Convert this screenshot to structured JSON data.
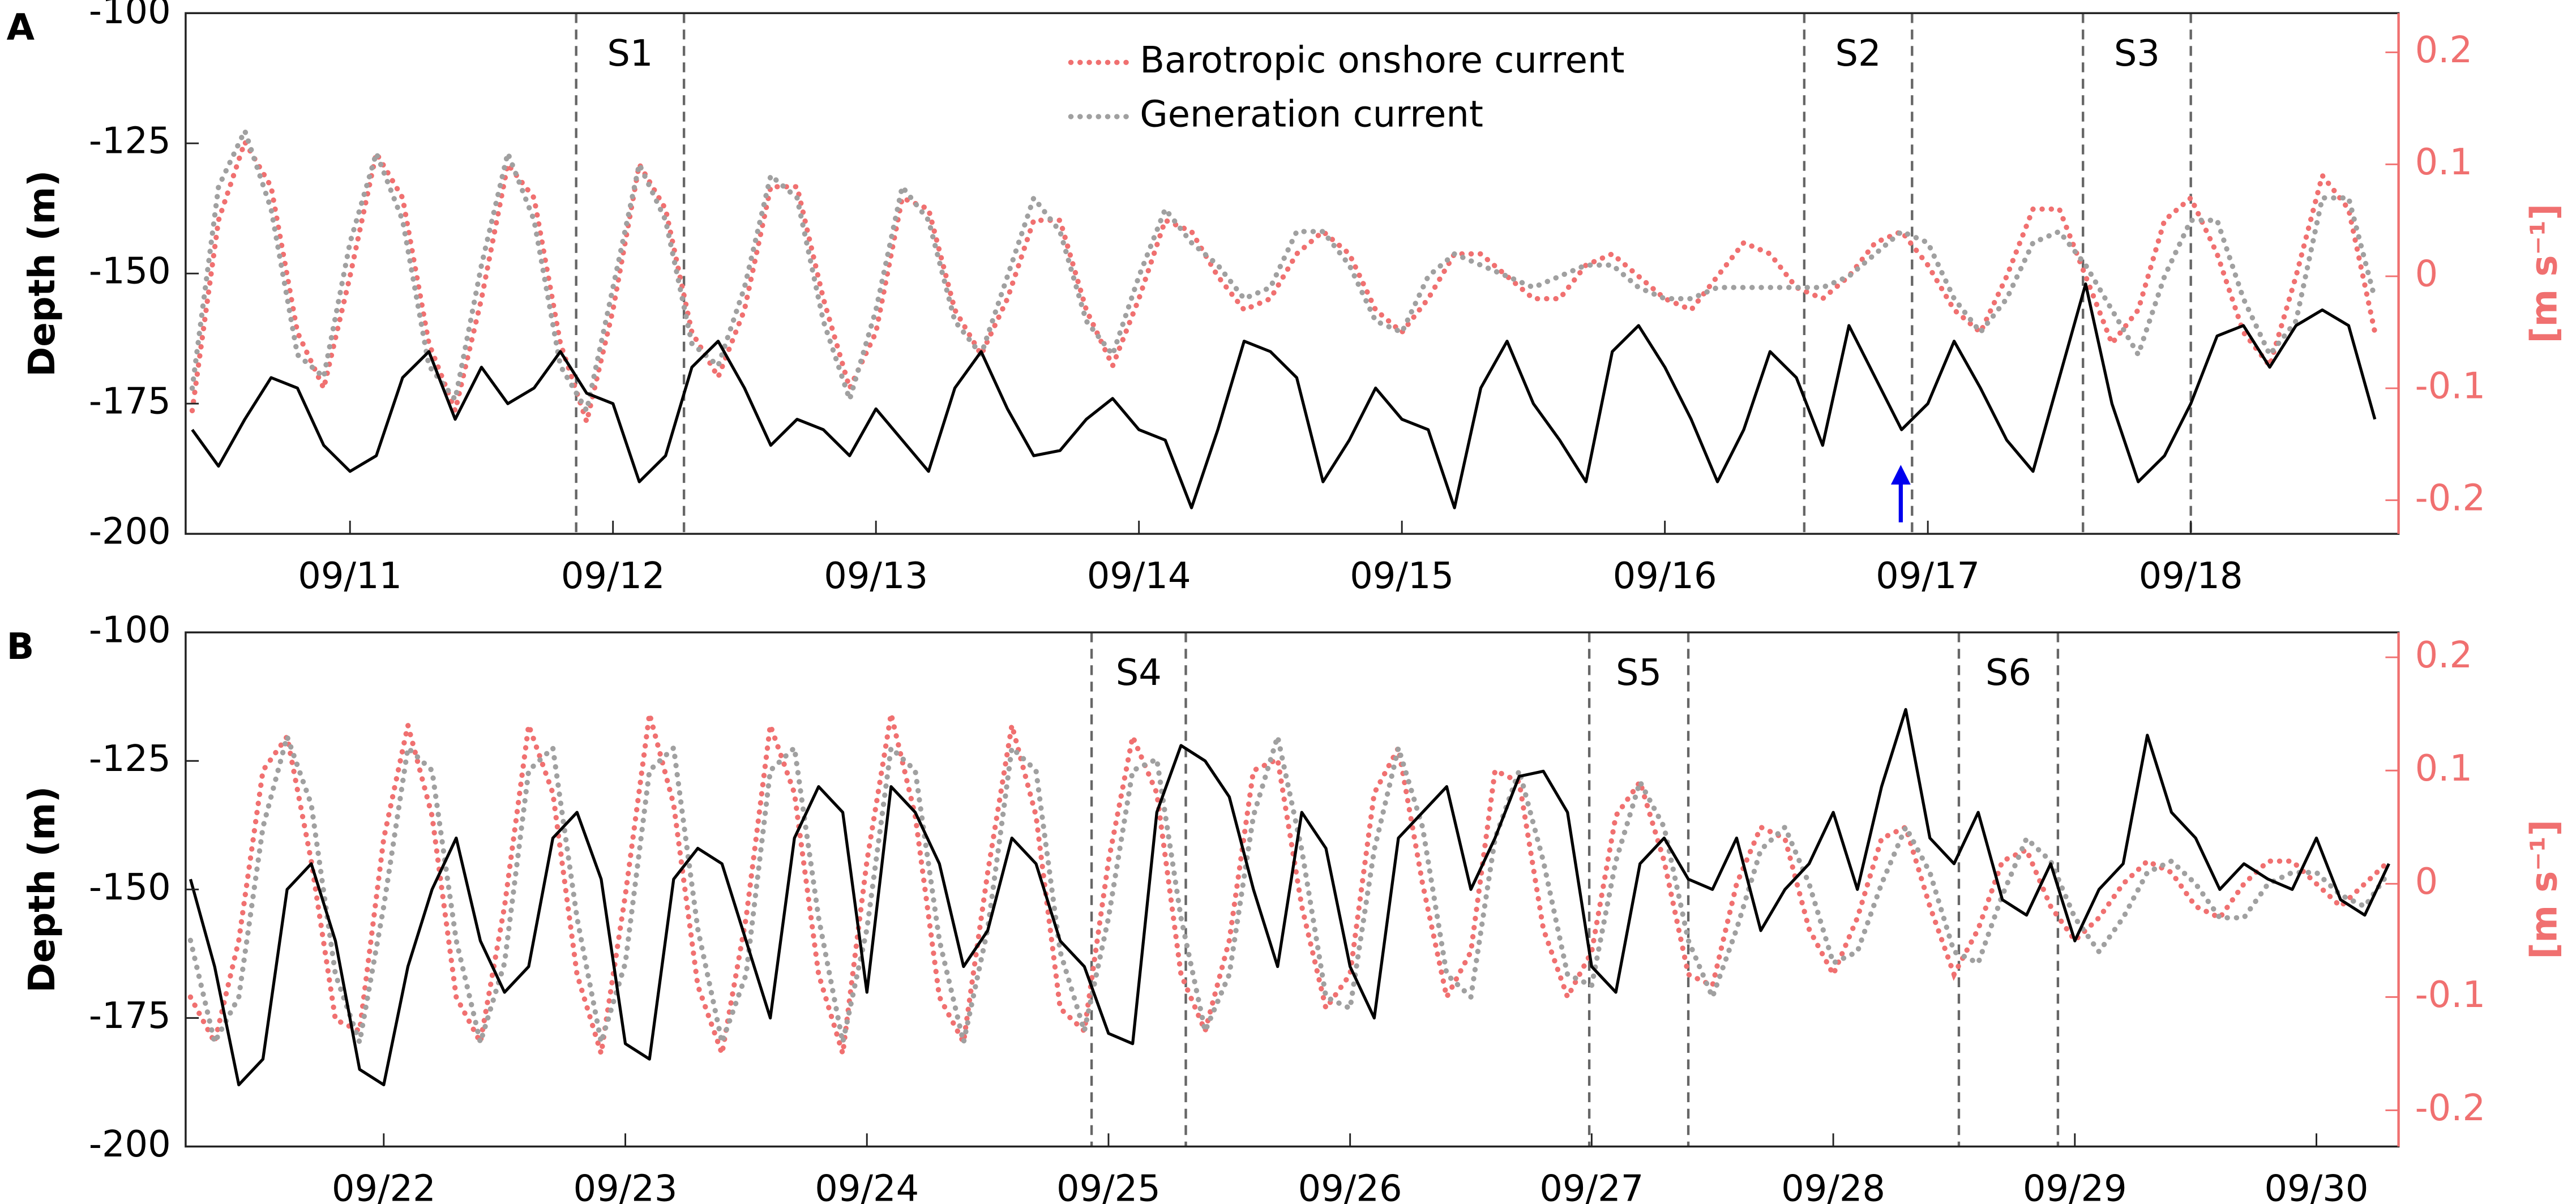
{
  "chart_data": [
    {
      "type": "line",
      "label": "A",
      "ylabel": "Depth (m)",
      "y2label": "[m s⁻¹]",
      "legend": "upper center",
      "xlim": [
        10.375,
        18.79
      ],
      "ylim": [
        -200,
        -100
      ],
      "y2lim": [
        -0.23,
        0.235
      ],
      "xticks": [
        {
          "value": 11,
          "label": "09/11"
        },
        {
          "value": 12,
          "label": "09/12"
        },
        {
          "value": 13,
          "label": "09/13"
        },
        {
          "value": 14,
          "label": "09/14"
        },
        {
          "value": 15,
          "label": "09/15"
        },
        {
          "value": 16,
          "label": "09/16"
        },
        {
          "value": 17,
          "label": "09/17"
        },
        {
          "value": 18,
          "label": "09/18"
        }
      ],
      "yticks": [
        -100,
        -125,
        -150,
        -175,
        -200
      ],
      "y2ticks": [
        0.2,
        0.1,
        0,
        -0.1,
        -0.2
      ],
      "annotations": [
        {
          "label": "S1",
          "x": [
            11.86,
            12.27
          ]
        },
        {
          "label": "S2",
          "x": [
            16.53,
            16.94
          ]
        },
        {
          "label": "S3",
          "x": [
            17.59,
            18.0
          ]
        }
      ],
      "x": [
        10.4,
        10.5,
        10.6,
        10.7,
        10.8,
        10.9,
        11.0,
        11.1,
        11.2,
        11.3,
        11.4,
        11.5,
        11.6,
        11.7,
        11.8,
        11.9,
        12.0,
        12.1,
        12.2,
        12.3,
        12.4,
        12.5,
        12.6,
        12.7,
        12.8,
        12.9,
        13.0,
        13.1,
        13.2,
        13.3,
        13.4,
        13.5,
        13.6,
        13.7,
        13.8,
        13.9,
        14.0,
        14.1,
        14.2,
        14.3,
        14.4,
        14.5,
        14.6,
        14.7,
        14.8,
        14.9,
        15.0,
        15.1,
        15.2,
        15.3,
        15.4,
        15.5,
        15.6,
        15.7,
        15.8,
        15.9,
        16.0,
        16.1,
        16.2,
        16.3,
        16.4,
        16.5,
        16.6,
        16.7,
        16.8,
        16.9,
        17.0,
        17.1,
        17.2,
        17.3,
        17.4,
        17.5,
        17.6,
        17.7,
        17.8,
        17.9,
        18.0,
        18.1,
        18.2,
        18.3,
        18.4,
        18.5,
        18.6,
        18.7
      ],
      "series": [
        {
          "name": "Barotropic onshore current",
          "color": "#f07070",
          "style": "dotted",
          "axis": "y2",
          "values": [
            -0.12,
            0.05,
            0.12,
            0.08,
            -0.05,
            -0.1,
            0.0,
            0.11,
            0.07,
            -0.06,
            -0.12,
            -0.02,
            0.1,
            0.07,
            -0.06,
            -0.13,
            -0.03,
            0.1,
            0.06,
            -0.05,
            -0.09,
            -0.03,
            0.08,
            0.08,
            -0.02,
            -0.1,
            -0.05,
            0.07,
            0.06,
            -0.03,
            -0.07,
            -0.02,
            0.05,
            0.05,
            -0.03,
            -0.08,
            -0.02,
            0.05,
            0.04,
            0.0,
            -0.03,
            -0.02,
            0.02,
            0.04,
            0.02,
            -0.03,
            -0.05,
            -0.02,
            0.02,
            0.02,
            0.0,
            -0.02,
            -0.02,
            0.01,
            0.02,
            0.0,
            -0.02,
            -0.03,
            0.0,
            0.03,
            0.02,
            -0.01,
            -0.02,
            0.0,
            0.03,
            0.04,
            0.01,
            -0.03,
            -0.05,
            0.0,
            0.06,
            0.06,
            0.0,
            -0.06,
            -0.03,
            0.05,
            0.07,
            0.02,
            -0.05,
            -0.08,
            0.0,
            0.09,
            0.06,
            -0.05
          ]
        },
        {
          "name": "Generation current",
          "color": "#a0a0a0",
          "style": "dotted",
          "axis": "y2",
          "values": [
            -0.1,
            0.08,
            0.13,
            0.06,
            -0.07,
            -0.09,
            0.03,
            0.11,
            0.05,
            -0.08,
            -0.11,
            0.01,
            0.11,
            0.05,
            -0.08,
            -0.12,
            -0.01,
            0.1,
            0.05,
            -0.06,
            -0.08,
            -0.01,
            0.09,
            0.07,
            -0.04,
            -0.11,
            -0.03,
            0.08,
            0.05,
            -0.04,
            -0.07,
            0.0,
            0.07,
            0.04,
            -0.04,
            -0.07,
            0.0,
            0.06,
            0.03,
            0.01,
            -0.02,
            -0.01,
            0.04,
            0.04,
            0.01,
            -0.04,
            -0.05,
            0.0,
            0.02,
            0.01,
            0.0,
            -0.01,
            0.0,
            0.01,
            0.01,
            -0.01,
            -0.02,
            -0.02,
            -0.01,
            -0.01,
            -0.01,
            -0.01,
            -0.01,
            0.0,
            0.02,
            0.04,
            0.03,
            -0.02,
            -0.05,
            -0.02,
            0.03,
            0.04,
            0.01,
            -0.03,
            -0.07,
            0.0,
            0.05,
            0.05,
            -0.02,
            -0.07,
            -0.04,
            0.07,
            0.07,
            -0.02
          ]
        },
        {
          "color": "#000000",
          "style": "solid",
          "axis": "y",
          "values": [
            -180,
            -187,
            -178,
            -170,
            -172,
            -183,
            -188,
            -185,
            -170,
            -165,
            -178,
            -168,
            -175,
            -172,
            -165,
            -173,
            -175,
            -190,
            -185,
            -168,
            -163,
            -172,
            -183,
            -178,
            -180,
            -185,
            -176,
            -182,
            -188,
            -172,
            -165,
            -176,
            -185,
            -184,
            -178,
            -174,
            -180,
            -182,
            -195,
            -180,
            -163,
            -165,
            -170,
            -190,
            -182,
            -172,
            -178,
            -180,
            -195,
            -172,
            -163,
            -175,
            -182,
            -190,
            -165,
            -160,
            -168,
            -178,
            -190,
            -180,
            -165,
            -170,
            -183,
            -160,
            -170,
            -180,
            -175,
            -163,
            -172,
            -182,
            -188,
            -170,
            -152,
            -175,
            -190,
            -185,
            -175,
            -162,
            -160,
            -168,
            -160,
            -157,
            -160,
            -178
          ]
        }
      ]
    },
    {
      "type": "line",
      "label": "B",
      "ylabel": "Depth (m)",
      "y2label": "[m s⁻¹]",
      "xlim": [
        21.18,
        30.34
      ],
      "ylim": [
        -200,
        -100
      ],
      "y2lim": [
        -0.232,
        0.222
      ],
      "xticks": [
        {
          "value": 22,
          "label": "09/22"
        },
        {
          "value": 23,
          "label": "09/23"
        },
        {
          "value": 24,
          "label": "09/24"
        },
        {
          "value": 25,
          "label": "09/25"
        },
        {
          "value": 26,
          "label": "09/26"
        },
        {
          "value": 27,
          "label": "09/27"
        },
        {
          "value": 28,
          "label": "09/28"
        },
        {
          "value": 29,
          "label": "09/29"
        },
        {
          "value": 30,
          "label": "09/30"
        }
      ],
      "yticks": [
        -100,
        -125,
        -150,
        -175,
        -200
      ],
      "y2ticks": [
        0.2,
        0.1,
        0,
        -0.1,
        -0.2
      ],
      "annotations": [
        {
          "label": "S4",
          "x": [
            24.93,
            25.32
          ]
        },
        {
          "label": "S5",
          "x": [
            26.99,
            27.4
          ]
        },
        {
          "label": "S6",
          "x": [
            28.52,
            28.93
          ]
        }
      ],
      "x": [
        21.2,
        21.3,
        21.4,
        21.5,
        21.6,
        21.7,
        21.8,
        21.9,
        22.0,
        22.1,
        22.2,
        22.3,
        22.4,
        22.5,
        22.6,
        22.7,
        22.8,
        22.9,
        23.0,
        23.1,
        23.2,
        23.3,
        23.4,
        23.5,
        23.6,
        23.7,
        23.8,
        23.9,
        24.0,
        24.1,
        24.2,
        24.3,
        24.4,
        24.5,
        24.6,
        24.7,
        24.8,
        24.9,
        25.0,
        25.1,
        25.2,
        25.3,
        25.4,
        25.5,
        25.6,
        25.7,
        25.8,
        25.9,
        26.0,
        26.1,
        26.2,
        26.3,
        26.4,
        26.5,
        26.6,
        26.7,
        26.8,
        26.9,
        27.0,
        27.1,
        27.2,
        27.3,
        27.4,
        27.5,
        27.6,
        27.7,
        27.8,
        27.9,
        28.0,
        28.1,
        28.2,
        28.3,
        28.4,
        28.5,
        28.6,
        28.7,
        28.8,
        28.9,
        29.0,
        29.1,
        29.2,
        29.3,
        29.4,
        29.5,
        29.6,
        29.7,
        29.8,
        29.9,
        30.0,
        30.1,
        30.2,
        30.3
      ],
      "series": [
        {
          "color": "#f07070",
          "style": "dotted",
          "axis": "y2",
          "values": [
            -0.1,
            -0.14,
            -0.05,
            0.1,
            0.13,
            0.02,
            -0.12,
            -0.13,
            0.04,
            0.14,
            0.06,
            -0.1,
            -0.14,
            -0.02,
            0.14,
            0.08,
            -0.08,
            -0.15,
            -0.01,
            0.15,
            0.07,
            -0.09,
            -0.15,
            -0.03,
            0.14,
            0.08,
            -0.08,
            -0.15,
            0.02,
            0.15,
            0.06,
            -0.1,
            -0.14,
            0.01,
            0.14,
            0.06,
            -0.11,
            -0.13,
            0.02,
            0.13,
            0.08,
            -0.08,
            -0.13,
            -0.05,
            0.1,
            0.11,
            -0.02,
            -0.11,
            -0.08,
            0.08,
            0.12,
            0.0,
            -0.1,
            -0.06,
            0.1,
            0.09,
            -0.04,
            -0.1,
            -0.06,
            0.06,
            0.09,
            0.02,
            -0.08,
            -0.09,
            0.0,
            0.05,
            0.04,
            -0.04,
            -0.08,
            -0.03,
            0.04,
            0.05,
            -0.02,
            -0.08,
            -0.04,
            0.02,
            0.03,
            -0.02,
            -0.05,
            -0.03,
            0.0,
            0.02,
            0.01,
            -0.02,
            -0.03,
            0.0,
            0.02,
            0.02,
            0.0,
            -0.02,
            0.0,
            0.02
          ]
        },
        {
          "color": "#a0a0a0",
          "style": "dotted",
          "axis": "y2",
          "values": [
            -0.05,
            -0.14,
            -0.1,
            0.05,
            0.13,
            0.07,
            -0.08,
            -0.14,
            -0.02,
            0.12,
            0.1,
            -0.05,
            -0.14,
            -0.07,
            0.1,
            0.12,
            -0.03,
            -0.14,
            -0.07,
            0.1,
            0.12,
            -0.04,
            -0.14,
            -0.08,
            0.1,
            0.12,
            -0.03,
            -0.14,
            -0.04,
            0.12,
            0.1,
            -0.05,
            -0.14,
            -0.04,
            0.12,
            0.1,
            -0.06,
            -0.13,
            -0.03,
            0.1,
            0.11,
            -0.03,
            -0.13,
            -0.08,
            0.06,
            0.13,
            0.03,
            -0.1,
            -0.11,
            0.03,
            0.12,
            0.05,
            -0.08,
            -0.1,
            0.04,
            0.1,
            0.02,
            -0.08,
            -0.09,
            0.02,
            0.09,
            0.05,
            -0.05,
            -0.1,
            -0.04,
            0.03,
            0.05,
            0.0,
            -0.07,
            -0.06,
            0.0,
            0.05,
            0.01,
            -0.06,
            -0.07,
            -0.01,
            0.04,
            0.02,
            -0.03,
            -0.06,
            -0.03,
            0.01,
            0.02,
            0.0,
            -0.03,
            -0.03,
            0.0,
            0.01,
            0.01,
            -0.01,
            -0.02,
            0.01
          ]
        },
        {
          "color": "#000000",
          "style": "solid",
          "axis": "y",
          "values": [
            -148,
            -165,
            -188,
            -183,
            -150,
            -145,
            -160,
            -185,
            -188,
            -165,
            -150,
            -140,
            -160,
            -170,
            -165,
            -140,
            -135,
            -148,
            -180,
            -183,
            -148,
            -142,
            -145,
            -160,
            -175,
            -140,
            -130,
            -135,
            -170,
            -130,
            -135,
            -145,
            -165,
            -158,
            -140,
            -145,
            -160,
            -165,
            -178,
            -180,
            -135,
            -122,
            -125,
            -132,
            -150,
            -165,
            -135,
            -142,
            -165,
            -175,
            -140,
            -135,
            -130,
            -150,
            -140,
            -128,
            -127,
            -135,
            -165,
            -170,
            -145,
            -140,
            -148,
            -150,
            -140,
            -158,
            -150,
            -145,
            -135,
            -150,
            -130,
            -115,
            -140,
            -145,
            -135,
            -152,
            -155,
            -145,
            -160,
            -150,
            -145,
            -120,
            -135,
            -140,
            -150,
            -145,
            -148,
            -150,
            -140,
            -152,
            -155,
            -145
          ]
        }
      ]
    }
  ]
}
